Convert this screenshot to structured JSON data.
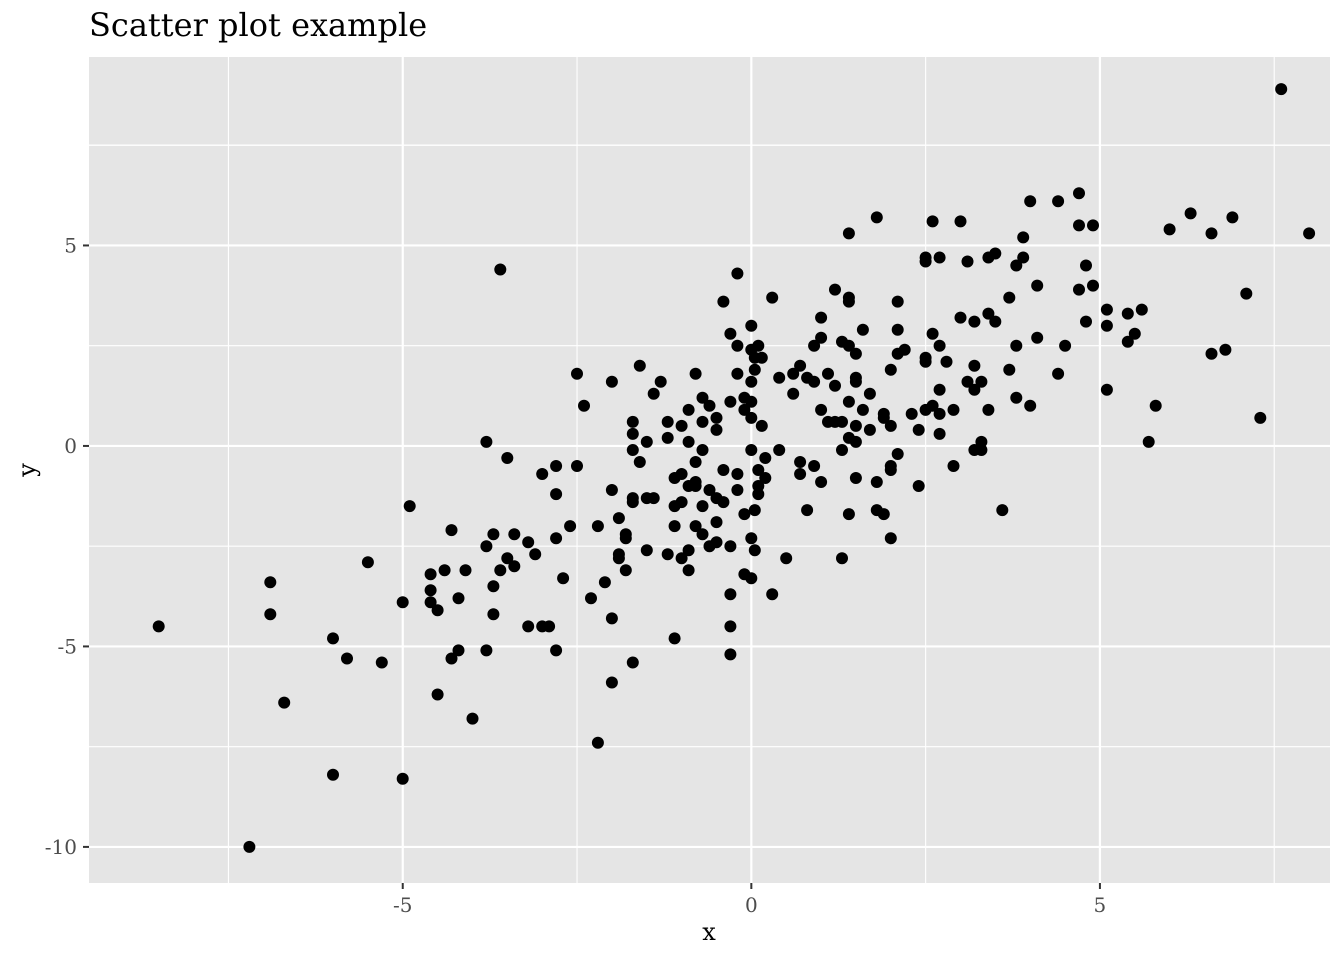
{
  "chart_data": {
    "type": "scatter",
    "title": "Scatter plot example",
    "xlabel": "x",
    "ylabel": "y",
    "xlim": [
      -9.5,
      8.3
    ],
    "ylim": [
      -10.9,
      9.7
    ],
    "x_ticks": [
      -5,
      0,
      5
    ],
    "y_ticks": [
      -10,
      -5,
      0,
      5
    ],
    "x_tick_labels": [
      "-5",
      "0",
      "5"
    ],
    "y_tick_labels": [
      "-10",
      "-5",
      "0",
      "5"
    ],
    "grid": true,
    "panel_color": "#e5e5e5",
    "point_color": "#000000",
    "points": [
      [
        -8.5,
        -4.5
      ],
      [
        -7.2,
        -10.0
      ],
      [
        -6.9,
        -3.4
      ],
      [
        -6.9,
        -4.2
      ],
      [
        -6.7,
        -6.4
      ],
      [
        -6.0,
        -4.8
      ],
      [
        -6.0,
        -8.2
      ],
      [
        -5.8,
        -5.3
      ],
      [
        -5.5,
        -2.9
      ],
      [
        -5.3,
        -5.4
      ],
      [
        -5.0,
        -3.9
      ],
      [
        -5.0,
        -8.3
      ],
      [
        -4.9,
        -1.5
      ],
      [
        -4.6,
        -3.9
      ],
      [
        -4.6,
        -3.2
      ],
      [
        -4.6,
        -3.6
      ],
      [
        -4.5,
        -6.2
      ],
      [
        -4.5,
        -4.1
      ],
      [
        -4.4,
        -3.1
      ],
      [
        -4.3,
        -5.3
      ],
      [
        -4.3,
        -2.1
      ],
      [
        -4.2,
        -5.1
      ],
      [
        -4.2,
        -3.8
      ],
      [
        -4.1,
        -3.1
      ],
      [
        -4.0,
        -6.8
      ],
      [
        -3.8,
        0.1
      ],
      [
        -3.8,
        -2.5
      ],
      [
        -3.8,
        -5.1
      ],
      [
        -3.7,
        -2.2
      ],
      [
        -3.7,
        -3.5
      ],
      [
        -3.7,
        -4.2
      ],
      [
        -3.6,
        4.4
      ],
      [
        -3.6,
        -3.1
      ],
      [
        -3.5,
        -0.3
      ],
      [
        -3.5,
        -2.8
      ],
      [
        -3.4,
        -3.0
      ],
      [
        -3.4,
        -2.2
      ],
      [
        -3.2,
        -2.4
      ],
      [
        -3.2,
        -4.5
      ],
      [
        -3.1,
        -2.7
      ],
      [
        -3.0,
        -4.5
      ],
      [
        -3.0,
        -0.7
      ],
      [
        -2.9,
        -4.5
      ],
      [
        -2.8,
        -0.5
      ],
      [
        -2.8,
        -1.2
      ],
      [
        -2.8,
        -2.3
      ],
      [
        -2.8,
        -5.1
      ],
      [
        -2.7,
        -3.3
      ],
      [
        -2.6,
        -2.0
      ],
      [
        -2.5,
        -0.5
      ],
      [
        -2.5,
        1.8
      ],
      [
        -2.4,
        1.0
      ],
      [
        -2.3,
        -3.8
      ],
      [
        -2.2,
        -7.4
      ],
      [
        -2.2,
        -2.0
      ],
      [
        -2.1,
        -3.4
      ],
      [
        -2.0,
        -1.1
      ],
      [
        -2.0,
        1.6
      ],
      [
        -2.0,
        -4.3
      ],
      [
        -2.0,
        -5.9
      ],
      [
        -1.9,
        -2.8
      ],
      [
        -1.9,
        -1.8
      ],
      [
        -1.9,
        -2.7
      ],
      [
        -1.8,
        -2.2
      ],
      [
        -1.8,
        -3.1
      ],
      [
        -1.8,
        -2.3
      ],
      [
        -1.7,
        -1.3
      ],
      [
        -1.7,
        0.3
      ],
      [
        -1.7,
        0.6
      ],
      [
        -1.7,
        -0.1
      ],
      [
        -1.7,
        -1.4
      ],
      [
        -1.7,
        -5.4
      ],
      [
        -1.6,
        2.0
      ],
      [
        -1.6,
        -0.4
      ],
      [
        -1.5,
        0.1
      ],
      [
        -1.5,
        -1.3
      ],
      [
        -1.5,
        -2.6
      ],
      [
        -1.4,
        1.3
      ],
      [
        -1.4,
        -1.3
      ],
      [
        -1.3,
        1.6
      ],
      [
        -1.2,
        -2.7
      ],
      [
        -1.2,
        0.6
      ],
      [
        -1.2,
        0.2
      ],
      [
        -1.1,
        -0.8
      ],
      [
        -1.1,
        -1.5
      ],
      [
        -1.1,
        -2.0
      ],
      [
        -1.1,
        -4.8
      ],
      [
        -1.0,
        0.5
      ],
      [
        -1.0,
        -0.7
      ],
      [
        -1.0,
        -1.4
      ],
      [
        -1.0,
        -2.8
      ],
      [
        -0.9,
        0.9
      ],
      [
        -0.9,
        0.1
      ],
      [
        -0.9,
        -1.0
      ],
      [
        -0.9,
        -2.6
      ],
      [
        -0.9,
        -3.1
      ],
      [
        -0.8,
        1.8
      ],
      [
        -0.8,
        -0.4
      ],
      [
        -0.8,
        -0.9
      ],
      [
        -0.8,
        -1.0
      ],
      [
        -0.8,
        -2.0
      ],
      [
        -0.7,
        1.2
      ],
      [
        -0.7,
        0.6
      ],
      [
        -0.7,
        -0.1
      ],
      [
        -0.7,
        -1.5
      ],
      [
        -0.7,
        -2.2
      ],
      [
        -0.6,
        1.0
      ],
      [
        -0.6,
        -1.1
      ],
      [
        -0.6,
        -2.5
      ],
      [
        -0.5,
        0.7
      ],
      [
        -0.5,
        -1.3
      ],
      [
        -0.5,
        -2.4
      ],
      [
        -0.5,
        0.4
      ],
      [
        -0.5,
        -1.9
      ],
      [
        -0.4,
        3.6
      ],
      [
        -0.4,
        -0.6
      ],
      [
        -0.4,
        -1.4
      ],
      [
        -0.3,
        2.8
      ],
      [
        -0.3,
        -2.5
      ],
      [
        -0.3,
        -3.7
      ],
      [
        -0.3,
        -4.5
      ],
      [
        -0.3,
        -5.2
      ],
      [
        -0.3,
        1.1
      ],
      [
        -0.2,
        4.3
      ],
      [
        -0.2,
        2.5
      ],
      [
        -0.2,
        1.8
      ],
      [
        -0.2,
        -0.7
      ],
      [
        -0.2,
        -1.1
      ],
      [
        -0.1,
        1.2
      ],
      [
        -0.1,
        0.9
      ],
      [
        -0.1,
        -1.7
      ],
      [
        -0.1,
        -3.2
      ],
      [
        0.0,
        3.0
      ],
      [
        0.0,
        2.4
      ],
      [
        0.0,
        1.6
      ],
      [
        0.0,
        1.1
      ],
      [
        0.0,
        0.7
      ],
      [
        0.0,
        -0.1
      ],
      [
        0.0,
        -2.3
      ],
      [
        0.0,
        -3.3
      ],
      [
        0.05,
        2.2
      ],
      [
        0.05,
        1.9
      ],
      [
        0.05,
        -1.6
      ],
      [
        0.05,
        -2.6
      ],
      [
        0.1,
        2.5
      ],
      [
        0.1,
        -1.0
      ],
      [
        0.1,
        -1.2
      ],
      [
        0.1,
        -0.6
      ],
      [
        0.15,
        2.2
      ],
      [
        0.15,
        0.5
      ],
      [
        0.2,
        -0.3
      ],
      [
        0.2,
        -0.8
      ],
      [
        0.3,
        3.7
      ],
      [
        0.3,
        -3.7
      ],
      [
        0.4,
        1.7
      ],
      [
        0.4,
        -0.1
      ],
      [
        0.5,
        -2.8
      ],
      [
        0.6,
        1.8
      ],
      [
        0.6,
        1.3
      ],
      [
        0.7,
        2.0
      ],
      [
        0.7,
        -0.4
      ],
      [
        0.7,
        -0.7
      ],
      [
        0.8,
        1.7
      ],
      [
        0.8,
        -1.6
      ],
      [
        0.9,
        2.5
      ],
      [
        0.9,
        1.6
      ],
      [
        0.9,
        -0.5
      ],
      [
        1.0,
        3.2
      ],
      [
        1.0,
        2.7
      ],
      [
        1.0,
        0.9
      ],
      [
        1.0,
        -0.9
      ],
      [
        1.1,
        1.8
      ],
      [
        1.1,
        0.6
      ],
      [
        1.2,
        3.9
      ],
      [
        1.2,
        1.5
      ],
      [
        1.2,
        0.6
      ],
      [
        1.3,
        2.6
      ],
      [
        1.3,
        0.6
      ],
      [
        1.3,
        -0.1
      ],
      [
        1.3,
        -2.8
      ],
      [
        1.4,
        5.3
      ],
      [
        1.4,
        3.6
      ],
      [
        1.4,
        3.7
      ],
      [
        1.4,
        2.5
      ],
      [
        1.4,
        1.1
      ],
      [
        1.4,
        0.2
      ],
      [
        1.4,
        -1.7
      ],
      [
        1.5,
        2.3
      ],
      [
        1.5,
        1.7
      ],
      [
        1.5,
        1.6
      ],
      [
        1.5,
        0.5
      ],
      [
        1.5,
        0.1
      ],
      [
        1.5,
        -0.8
      ],
      [
        1.6,
        2.9
      ],
      [
        1.6,
        0.9
      ],
      [
        1.7,
        1.3
      ],
      [
        1.7,
        0.4
      ],
      [
        1.8,
        5.7
      ],
      [
        1.8,
        -1.6
      ],
      [
        1.8,
        -0.9
      ],
      [
        1.9,
        0.8
      ],
      [
        1.9,
        0.7
      ],
      [
        1.9,
        -1.7
      ],
      [
        2.0,
        1.9
      ],
      [
        2.0,
        0.5
      ],
      [
        2.0,
        -0.5
      ],
      [
        2.0,
        -0.6
      ],
      [
        2.0,
        -2.3
      ],
      [
        2.1,
        3.6
      ],
      [
        2.1,
        2.9
      ],
      [
        2.1,
        2.3
      ],
      [
        2.1,
        -0.2
      ],
      [
        2.2,
        2.4
      ],
      [
        2.3,
        0.8
      ],
      [
        2.4,
        -1.0
      ],
      [
        2.4,
        0.4
      ],
      [
        2.5,
        4.6
      ],
      [
        2.5,
        4.7
      ],
      [
        2.5,
        2.2
      ],
      [
        2.5,
        2.1
      ],
      [
        2.5,
        0.9
      ],
      [
        2.6,
        5.6
      ],
      [
        2.6,
        2.8
      ],
      [
        2.6,
        1.0
      ],
      [
        2.7,
        4.7
      ],
      [
        2.7,
        2.5
      ],
      [
        2.7,
        1.4
      ],
      [
        2.7,
        0.8
      ],
      [
        2.7,
        0.3
      ],
      [
        2.8,
        2.1
      ],
      [
        2.9,
        -0.5
      ],
      [
        2.9,
        0.9
      ],
      [
        3.0,
        5.6
      ],
      [
        3.0,
        3.2
      ],
      [
        3.1,
        4.6
      ],
      [
        3.1,
        1.6
      ],
      [
        3.2,
        3.1
      ],
      [
        3.2,
        2.0
      ],
      [
        3.2,
        1.4
      ],
      [
        3.2,
        -0.1
      ],
      [
        3.3,
        -0.1
      ],
      [
        3.3,
        1.6
      ],
      [
        3.3,
        0.1
      ],
      [
        3.4,
        4.7
      ],
      [
        3.4,
        3.3
      ],
      [
        3.4,
        0.9
      ],
      [
        3.5,
        4.8
      ],
      [
        3.5,
        3.1
      ],
      [
        3.6,
        -1.6
      ],
      [
        3.7,
        3.7
      ],
      [
        3.7,
        1.9
      ],
      [
        3.8,
        4.5
      ],
      [
        3.8,
        2.5
      ],
      [
        3.8,
        1.2
      ],
      [
        3.9,
        5.2
      ],
      [
        3.9,
        4.7
      ],
      [
        4.0,
        6.1
      ],
      [
        4.0,
        1.0
      ],
      [
        4.1,
        4.0
      ],
      [
        4.1,
        2.7
      ],
      [
        4.4,
        6.1
      ],
      [
        4.4,
        1.8
      ],
      [
        4.5,
        2.5
      ],
      [
        4.7,
        6.3
      ],
      [
        4.7,
        5.5
      ],
      [
        4.7,
        3.9
      ],
      [
        4.8,
        4.5
      ],
      [
        4.8,
        3.1
      ],
      [
        4.9,
        5.5
      ],
      [
        4.9,
        4.0
      ],
      [
        5.1,
        3.4
      ],
      [
        5.1,
        3.0
      ],
      [
        5.1,
        1.4
      ],
      [
        5.4,
        2.6
      ],
      [
        5.4,
        3.3
      ],
      [
        5.5,
        2.8
      ],
      [
        5.6,
        3.4
      ],
      [
        5.7,
        0.1
      ],
      [
        5.8,
        1.0
      ],
      [
        6.0,
        5.4
      ],
      [
        6.3,
        5.8
      ],
      [
        6.6,
        5.3
      ],
      [
        6.6,
        2.3
      ],
      [
        6.8,
        2.4
      ],
      [
        6.9,
        5.7
      ],
      [
        7.1,
        3.8
      ],
      [
        7.3,
        0.7
      ],
      [
        7.6,
        8.9
      ],
      [
        8.0,
        5.3
      ]
    ]
  }
}
